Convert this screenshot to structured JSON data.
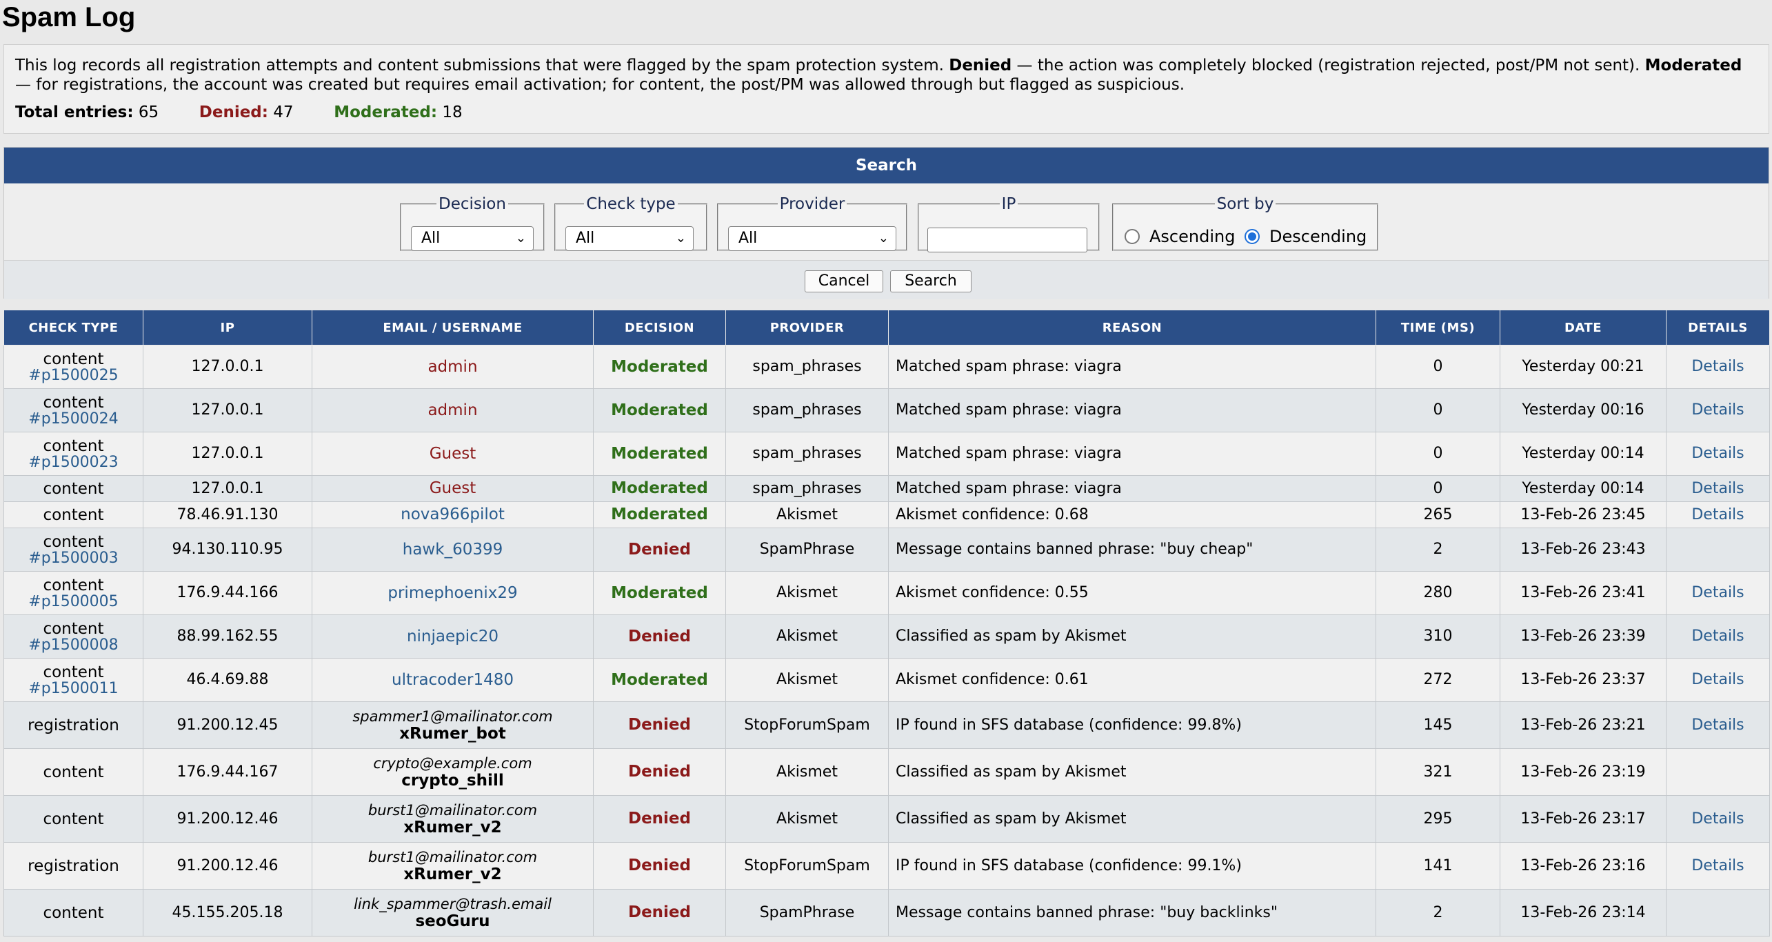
{
  "page": {
    "title": "Spam Log"
  },
  "info": {
    "desc_part1": "This log records all registration attempts and content submissions that were flagged by the spam protection system. ",
    "denied_term": "Denied",
    "desc_part2": " — the action was completely blocked (registration rejected, post/PM not sent). ",
    "moderated_term": "Moderated",
    "desc_part3": " — for registrations, the account was created but requires email activation; for content, the post/PM was allowed through but flagged as suspicious.",
    "total_label": "Total entries:",
    "total_value": "65",
    "denied_label": "Denied:",
    "denied_value": "47",
    "moderated_label": "Moderated:",
    "moderated_value": "18"
  },
  "search": {
    "header": "Search",
    "decision": {
      "legend": "Decision",
      "value": "All"
    },
    "check_type": {
      "legend": "Check type",
      "value": "All"
    },
    "provider": {
      "legend": "Provider",
      "value": "All"
    },
    "ip": {
      "legend": "IP",
      "value": ""
    },
    "sort": {
      "legend": "Sort by",
      "ascending": "Ascending",
      "descending": "Descending",
      "selected": "Descending"
    },
    "cancel": "Cancel",
    "search_btn": "Search"
  },
  "table": {
    "columns": [
      "CHECK TYPE",
      "IP",
      "EMAIL / USERNAME",
      "DECISION",
      "PROVIDER",
      "REASON",
      "TIME (MS)",
      "DATE",
      "DETAILS"
    ],
    "rows": [
      {
        "type": "content",
        "ref": "#p1500025",
        "ip": "127.0.0.1",
        "email": "",
        "user": "admin",
        "user_style": "red",
        "decision": "Moderated",
        "provider": "spam_phrases",
        "reason": "Matched spam phrase: viagra",
        "time": "0",
        "date": "Yesterday 00:21",
        "details": "Details"
      },
      {
        "type": "content",
        "ref": "#p1500024",
        "ip": "127.0.0.1",
        "email": "",
        "user": "admin",
        "user_style": "red",
        "decision": "Moderated",
        "provider": "spam_phrases",
        "reason": "Matched spam phrase: viagra",
        "time": "0",
        "date": "Yesterday 00:16",
        "details": "Details"
      },
      {
        "type": "content",
        "ref": "#p1500023",
        "ip": "127.0.0.1",
        "email": "",
        "user": "Guest",
        "user_style": "red",
        "decision": "Moderated",
        "provider": "spam_phrases",
        "reason": "Matched spam phrase: viagra",
        "time": "0",
        "date": "Yesterday 00:14",
        "details": "Details"
      },
      {
        "type": "content",
        "ref": "",
        "ip": "127.0.0.1",
        "email": "",
        "user": "Guest",
        "user_style": "red",
        "decision": "Moderated",
        "provider": "spam_phrases",
        "reason": "Matched spam phrase: viagra",
        "time": "0",
        "date": "Yesterday 00:14",
        "details": "Details"
      },
      {
        "type": "content",
        "ref": "",
        "ip": "78.46.91.130",
        "email": "",
        "user": "nova966pilot",
        "user_style": "link",
        "decision": "Moderated",
        "provider": "Akismet",
        "reason": "Akismet confidence: 0.68",
        "time": "265",
        "date": "13-Feb-26 23:45",
        "details": "Details"
      },
      {
        "type": "content",
        "ref": "#p1500003",
        "ip": "94.130.110.95",
        "email": "",
        "user": "hawk_60399",
        "user_style": "link",
        "decision": "Denied",
        "provider": "SpamPhrase",
        "reason": "Message contains banned phrase: \"buy cheap\"",
        "time": "2",
        "date": "13-Feb-26 23:43",
        "details": ""
      },
      {
        "type": "content",
        "ref": "#p1500005",
        "ip": "176.9.44.166",
        "email": "",
        "user": "primephoenix29",
        "user_style": "link",
        "decision": "Moderated",
        "provider": "Akismet",
        "reason": "Akismet confidence: 0.55",
        "time": "280",
        "date": "13-Feb-26 23:41",
        "details": "Details"
      },
      {
        "type": "content",
        "ref": "#p1500008",
        "ip": "88.99.162.55",
        "email": "",
        "user": "ninjaepic20",
        "user_style": "link",
        "decision": "Denied",
        "provider": "Akismet",
        "reason": "Classified as spam by Akismet",
        "time": "310",
        "date": "13-Feb-26 23:39",
        "details": "Details"
      },
      {
        "type": "content",
        "ref": "#p1500011",
        "ip": "46.4.69.88",
        "email": "",
        "user": "ultracoder1480",
        "user_style": "link",
        "decision": "Moderated",
        "provider": "Akismet",
        "reason": "Akismet confidence: 0.61",
        "time": "272",
        "date": "13-Feb-26 23:37",
        "details": "Details"
      },
      {
        "type": "registration",
        "ref": "",
        "ip": "91.200.12.45",
        "email": "spammer1@mailinator.com",
        "user": "xRumer_bot",
        "user_style": "bold",
        "decision": "Denied",
        "provider": "StopForumSpam",
        "reason": "IP found in SFS database (confidence: 99.8%)",
        "time": "145",
        "date": "13-Feb-26 23:21",
        "details": "Details"
      },
      {
        "type": "content",
        "ref": "",
        "ip": "176.9.44.167",
        "email": "crypto@example.com",
        "user": "crypto_shill",
        "user_style": "bold",
        "decision": "Denied",
        "provider": "Akismet",
        "reason": "Classified as spam by Akismet",
        "time": "321",
        "date": "13-Feb-26 23:19",
        "details": ""
      },
      {
        "type": "content",
        "ref": "",
        "ip": "91.200.12.46",
        "email": "burst1@mailinator.com",
        "user": "xRumer_v2",
        "user_style": "bold",
        "decision": "Denied",
        "provider": "Akismet",
        "reason": "Classified as spam by Akismet",
        "time": "295",
        "date": "13-Feb-26 23:17",
        "details": "Details"
      },
      {
        "type": "registration",
        "ref": "",
        "ip": "91.200.12.46",
        "email": "burst1@mailinator.com",
        "user": "xRumer_v2",
        "user_style": "bold",
        "decision": "Denied",
        "provider": "StopForumSpam",
        "reason": "IP found in SFS database (confidence: 99.1%)",
        "time": "141",
        "date": "13-Feb-26 23:16",
        "details": "Details"
      },
      {
        "type": "content",
        "ref": "",
        "ip": "45.155.205.18",
        "email": "link_spammer@trash.email",
        "user": "seoGuru",
        "user_style": "bold",
        "decision": "Denied",
        "provider": "SpamPhrase",
        "reason": "Message contains banned phrase: \"buy backlinks\"",
        "time": "2",
        "date": "13-Feb-26 23:14",
        "details": ""
      }
    ]
  },
  "colors": {
    "header_blue": "#2b4f88",
    "denied_red": "#8b1a1a",
    "moderated_green": "#2f6f1a",
    "link_blue": "#2a5d8f"
  }
}
